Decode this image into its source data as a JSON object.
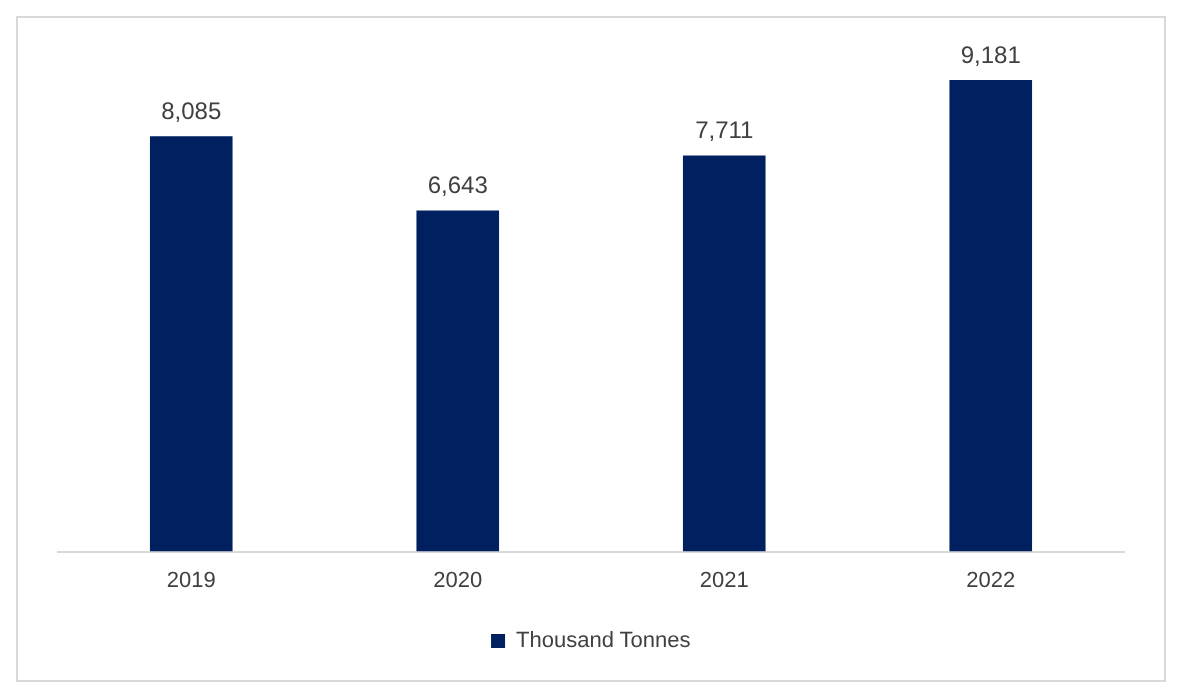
{
  "chart_data": {
    "type": "bar",
    "categories": [
      "2019",
      "2020",
      "2021",
      "2022"
    ],
    "series": [
      {
        "name": "Thousand Tonnes",
        "color": "#002060",
        "values": [
          8085,
          6643,
          7711,
          9181
        ],
        "value_labels": [
          "8,085",
          "6,643",
          "7,711",
          "9,181"
        ]
      }
    ],
    "legend": "bottom",
    "grid": false,
    "tick_labels": "x"
  }
}
